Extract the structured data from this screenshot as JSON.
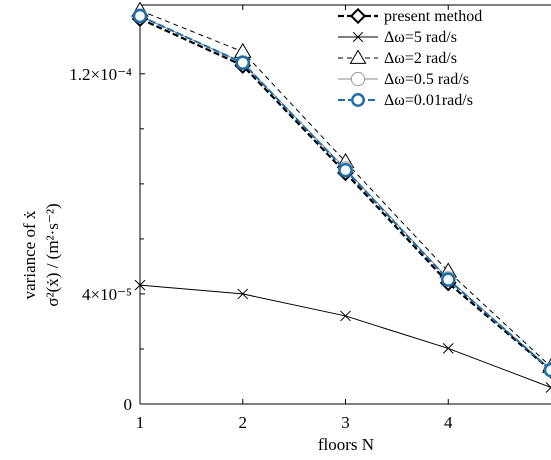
{
  "chart_data": {
    "type": "line",
    "xlabel": "floors N",
    "ylabel_line1": "variance of ẋ",
    "ylabel_line2": "σ²(ẋ) / (m²·s⁻²)",
    "x": [
      1,
      2,
      3,
      4,
      5
    ],
    "xlim": [
      1,
      5
    ],
    "ylim": [
      0,
      0.000145
    ],
    "x_ticks": [
      1,
      2,
      3,
      4
    ],
    "x_tick_labels": [
      "1",
      "2",
      "3",
      "4"
    ],
    "y_ticks": [
      0,
      4e-05,
      0.00012
    ],
    "y_tick_labels": [
      "0",
      "4×10⁻⁵",
      "1.2×10⁻⁴"
    ],
    "y_minor_ticks": [
      2e-05,
      6e-05,
      8e-05,
      0.0001,
      0.00014
    ],
    "grid": false,
    "legend_position": "top-right",
    "series": [
      {
        "name": "present method",
        "marker": "diamond",
        "color": "#000000",
        "dash": "6,3",
        "width": 2.2,
        "values": [
          0.00014,
          0.000123,
          8.4e-05,
          4.4e-05,
          1.22e-05
        ]
      },
      {
        "name": "Δω=5 rad/s",
        "marker": "x",
        "color": "#000000",
        "dash": "",
        "width": 1,
        "values": [
          4.32e-05,
          4e-05,
          3.2e-05,
          2.02e-05,
          6e-06
        ]
      },
      {
        "name": "Δω=2 rad/s",
        "marker": "triangle",
        "color": "#000000",
        "dash": "5,4",
        "width": 1,
        "values": [
          0.000143,
          0.000128,
          8.8e-05,
          4.82e-05,
          1.35e-05
        ]
      },
      {
        "name": "Δω=0.5 rad/s",
        "marker": "circle",
        "color": "#888888",
        "dash": "",
        "width": 1,
        "values": [
          0.000141,
          0.000124,
          8.55e-05,
          4.55e-05,
          1.24e-05
        ]
      },
      {
        "name": "Δω=0.01rad/s",
        "marker": "circle-blue",
        "color": "#1f6fa8",
        "dash": "7,3",
        "width": 2,
        "values": [
          0.000141,
          0.000124,
          8.5e-05,
          4.52e-05,
          1.23e-05
        ]
      }
    ]
  }
}
